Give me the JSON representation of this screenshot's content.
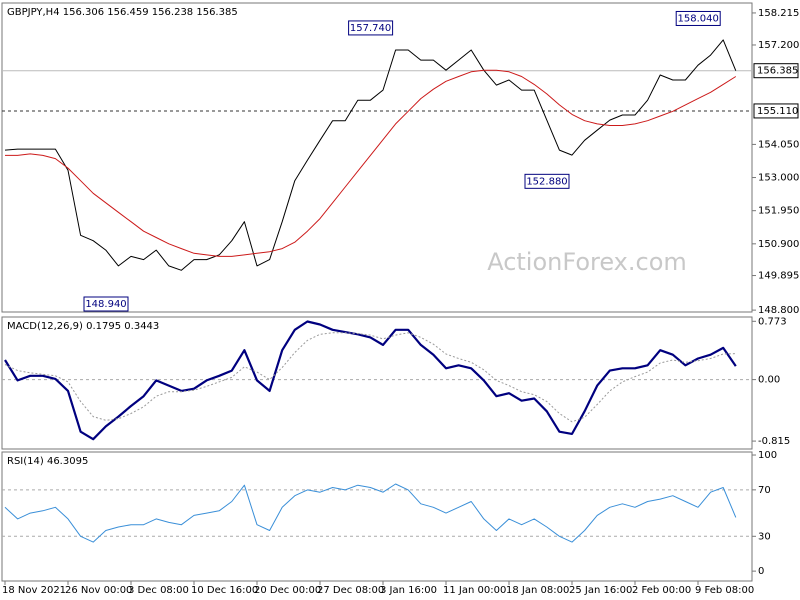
{
  "chart_data": [
    {
      "type": "line",
      "title": "GBPJPY,H4  156.306 156.459 156.238 156.385",
      "watermark": "ActionForex.com",
      "ylim": [
        148.74,
        158.53
      ],
      "yticks": [
        158.215,
        {
          "value": 157.2,
          "label": "157.200"
        },
        {
          "value": 154.05,
          "label": "154.050"
        },
        {
          "value": 153.0,
          "label": "153.000"
        },
        {
          "value": 151.95,
          "label": "151.950"
        },
        {
          "value": 150.9,
          "label": "150.900"
        },
        149.895,
        {
          "value": 148.8,
          "label": "148.800"
        }
      ],
      "hlines": [
        {
          "value": 156.385,
          "label": "156.385",
          "style": "solid"
        },
        {
          "value": 155.11,
          "label": "155.110",
          "style": "dashed"
        }
      ],
      "annotations": [
        {
          "index": 31,
          "value": 157.74,
          "label": "157.740"
        },
        {
          "index": 57,
          "value": 158.04,
          "label": "158.040"
        },
        {
          "index": 45,
          "value": 152.88,
          "label": "152.880"
        },
        {
          "index": 10,
          "value": 148.94,
          "label": "148.940"
        }
      ],
      "series": [
        {
          "color": "#000000",
          "width": 1,
          "values": [
            153.87,
            153.9,
            153.9,
            153.9,
            153.9,
            153.23,
            151.17,
            151.0,
            150.7,
            150.2,
            150.5,
            150.4,
            150.7,
            150.2,
            150.06,
            150.4,
            150.4,
            150.55,
            151.0,
            151.6,
            150.2,
            150.4,
            151.6,
            152.9,
            153.55,
            154.18,
            154.8,
            154.8,
            155.45,
            155.45,
            155.77,
            157.04,
            157.04,
            156.72,
            156.72,
            156.4,
            156.72,
            157.04,
            156.4,
            155.93,
            156.09,
            155.77,
            155.77,
            154.82,
            153.87,
            153.71,
            154.18,
            154.5,
            154.82,
            154.98,
            154.98,
            155.45,
            156.25,
            156.09,
            156.09,
            156.56,
            156.88,
            157.36,
            156.385
          ]
        },
        {
          "color": "#cc1a1a",
          "width": 1,
          "values": [
            153.7,
            153.7,
            153.75,
            153.7,
            153.6,
            153.3,
            152.9,
            152.5,
            152.2,
            151.9,
            151.6,
            151.3,
            151.1,
            150.9,
            150.75,
            150.6,
            150.55,
            150.5,
            150.5,
            150.55,
            150.6,
            150.65,
            150.75,
            150.95,
            151.3,
            151.7,
            152.2,
            152.7,
            153.2,
            153.7,
            154.2,
            154.7,
            155.1,
            155.5,
            155.8,
            156.05,
            156.2,
            156.35,
            156.4,
            156.4,
            156.35,
            156.2,
            155.95,
            155.65,
            155.3,
            155.0,
            154.8,
            154.7,
            154.65,
            154.65,
            154.7,
            154.8,
            154.95,
            155.1,
            155.3,
            155.5,
            155.7,
            155.95,
            156.2
          ]
        }
      ]
    },
    {
      "type": "line",
      "title": "MACD(12,26,9) 0.1795 0.3443",
      "ylim": [
        -0.92,
        0.83
      ],
      "yticks": [
        0.773,
        {
          "value": 0,
          "label": "0.00"
        },
        -0.815
      ],
      "grid_ticks": [
        1
      ],
      "series": [
        {
          "color": "#00007f",
          "width": 2.2,
          "values": [
            0.26,
            -0.01,
            0.05,
            0.05,
            0.01,
            -0.15,
            -0.69,
            -0.79,
            -0.62,
            -0.49,
            -0.35,
            -0.22,
            -0.01,
            -0.08,
            -0.15,
            -0.12,
            -0.01,
            0.05,
            0.12,
            0.39,
            -0.01,
            -0.15,
            0.39,
            0.66,
            0.77,
            0.73,
            0.66,
            0.63,
            0.6,
            0.56,
            0.46,
            0.66,
            0.66,
            0.46,
            0.33,
            0.15,
            0.19,
            0.15,
            -0.01,
            -0.22,
            -0.18,
            -0.28,
            -0.25,
            -0.42,
            -0.69,
            -0.72,
            -0.42,
            -0.08,
            0.12,
            0.15,
            0.15,
            0.19,
            0.39,
            0.33,
            0.19,
            0.28,
            0.33,
            0.42,
            0.1795
          ]
        },
        {
          "color": "#9a9a9a",
          "width": 1,
          "dash": true,
          "values": [
            0.2,
            0.12,
            0.09,
            0.07,
            0.05,
            -0.03,
            -0.29,
            -0.49,
            -0.54,
            -0.52,
            -0.45,
            -0.36,
            -0.22,
            -0.16,
            -0.16,
            -0.14,
            -0.09,
            -0.03,
            0.03,
            0.17,
            0.1,
            0.0,
            0.16,
            0.36,
            0.52,
            0.6,
            0.62,
            0.62,
            0.61,
            0.59,
            0.54,
            0.59,
            0.62,
            0.56,
            0.47,
            0.34,
            0.28,
            0.23,
            0.13,
            -0.01,
            -0.08,
            -0.16,
            -0.2,
            -0.29,
            -0.45,
            -0.56,
            -0.5,
            -0.33,
            -0.15,
            -0.03,
            0.04,
            0.1,
            0.22,
            0.26,
            0.23,
            0.25,
            0.28,
            0.34,
            0.3443
          ]
        }
      ]
    },
    {
      "type": "line",
      "title": "RSI(14) 46.3095",
      "ylim": [
        -8.5,
        102.6
      ],
      "yticks": [
        100,
        70,
        30,
        0
      ],
      "grid_ticks": [
        1,
        2
      ],
      "categories": [
        "18 Nov 2021",
        null,
        null,
        null,
        null,
        "26 Nov 00:00",
        null,
        null,
        null,
        null,
        "3 Dec 08:00",
        null,
        null,
        null,
        null,
        "10 Dec 16:00",
        null,
        null,
        null,
        null,
        "20 Dec 00:00",
        null,
        null,
        null,
        null,
        "27 Dec 08:00",
        null,
        null,
        null,
        null,
        "3 Jan 16:00",
        null,
        null,
        null,
        null,
        "11 Jan 00:00",
        null,
        null,
        null,
        null,
        "18 Jan 08:00",
        null,
        null,
        null,
        null,
        "25 Jan 16:00",
        null,
        null,
        null,
        null,
        "2 Feb 00:00",
        null,
        null,
        null,
        null,
        "9 Feb 08:00",
        null,
        null,
        null
      ],
      "series": [
        {
          "color": "#3a8fd8",
          "width": 1,
          "values": [
            55,
            45,
            50,
            52,
            55,
            45,
            30,
            25,
            35,
            38,
            40,
            40,
            45,
            42,
            40,
            48,
            50,
            52,
            60,
            74,
            40,
            35,
            55,
            65,
            70,
            68,
            72,
            70,
            74,
            72,
            68,
            75,
            70,
            58,
            55,
            50,
            55,
            60,
            45,
            35,
            45,
            40,
            45,
            38,
            30,
            25,
            35,
            48,
            55,
            58,
            55,
            60,
            62,
            65,
            60,
            55,
            68,
            72,
            46.3095
          ]
        }
      ]
    }
  ]
}
